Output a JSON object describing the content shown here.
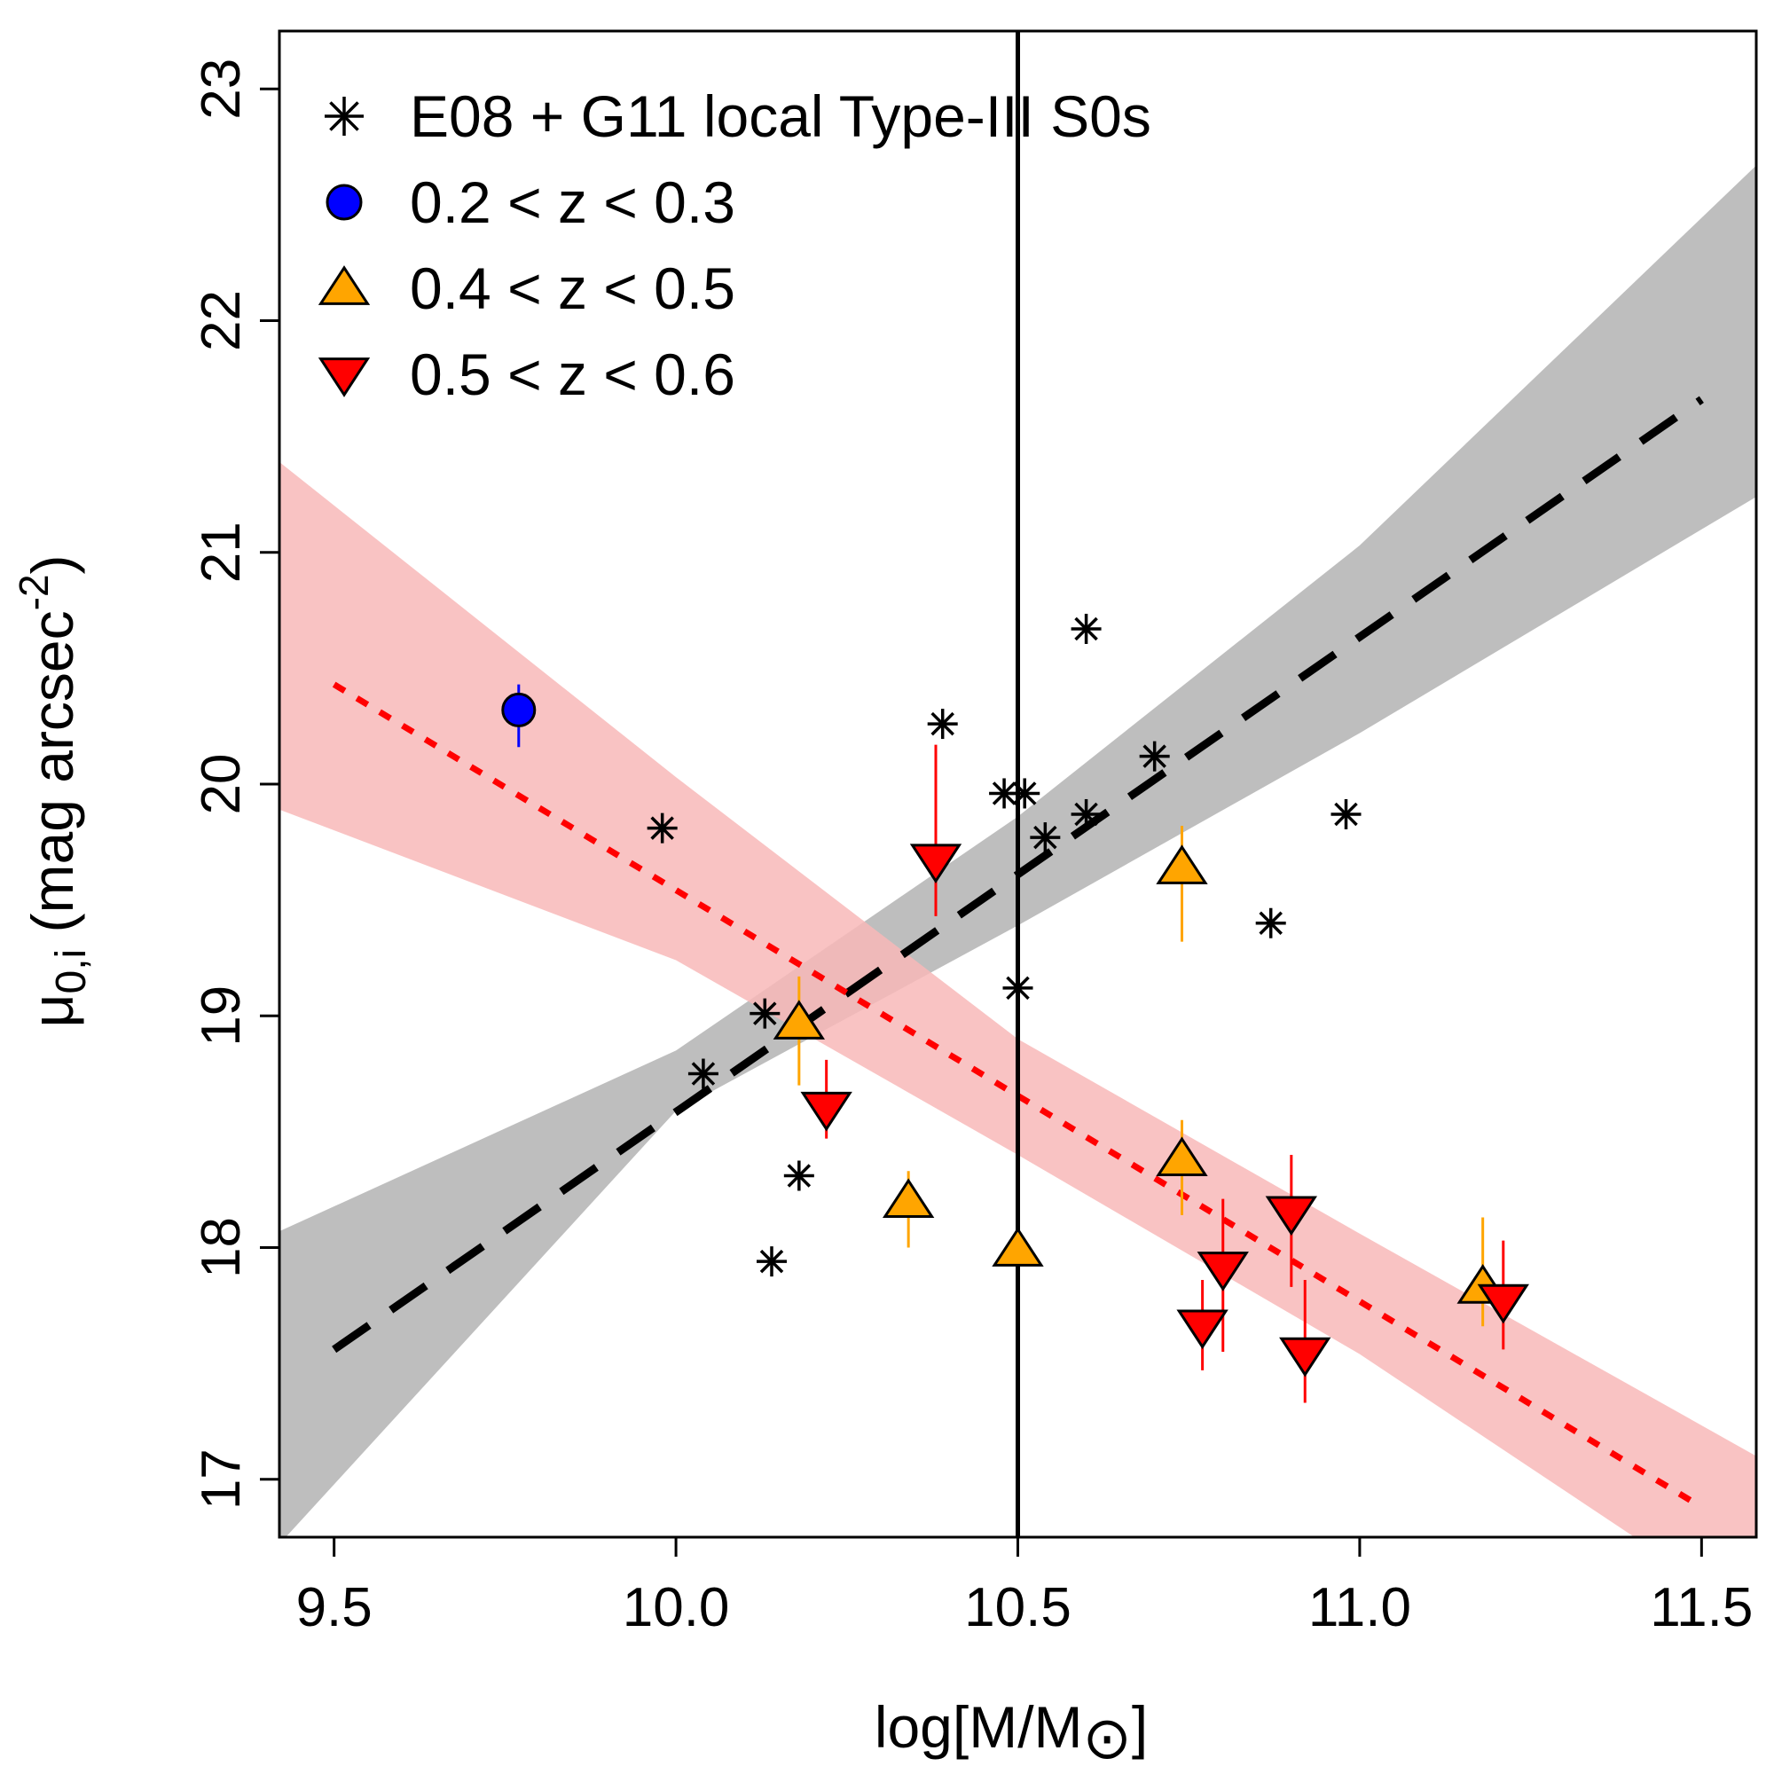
{
  "chart_data": {
    "type": "scatter",
    "title": "",
    "xlabel": "log[M/M⊙]",
    "xlabel_main": "log[M/M",
    "xlabel_sub": "⊙",
    "xlabel_close": "]",
    "ylabel": "μ0,i (mag arcsec-2)",
    "ylabel_mu": "μ",
    "ylabel_sub": "0,i",
    "ylabel_main": " (mag arcsec",
    "ylabel_sup": "-2",
    "ylabel_close": ")",
    "xlim": [
      9.42,
      11.58
    ],
    "ylim": [
      16.75,
      23.25
    ],
    "xticks": [
      9.5,
      10.0,
      10.5,
      11.0,
      11.5
    ],
    "xtick_labels": [
      "9.5",
      "10.0",
      "10.5",
      "11.0",
      "11.5"
    ],
    "yticks": [
      17,
      18,
      19,
      20,
      21,
      22,
      23
    ],
    "ytick_labels": [
      "17",
      "18",
      "19",
      "20",
      "21",
      "22",
      "23"
    ],
    "vertical_line_x": 10.5,
    "legend_position": "top-left",
    "legend": [
      {
        "label": "E08 + G11 local Type-III S0s",
        "marker": "asterisk",
        "color": "#000000"
      },
      {
        "label": "0.2 < z < 0.3",
        "marker": "circle",
        "color": "#0000ff"
      },
      {
        "label": "0.4 < z < 0.5",
        "marker": "triangle-up",
        "color": "#ffa500"
      },
      {
        "label": "0.5 < z < 0.6",
        "marker": "triangle-down",
        "color": "#ff0000"
      }
    ],
    "fits": [
      {
        "name": "local fit",
        "style": "dashed",
        "color": "#000000",
        "band_color": "#bebebe",
        "x": [
          9.5,
          11.5
        ],
        "y": [
          17.56,
          21.66
        ],
        "band_x": [
          9.42,
          10.0,
          10.5,
          11.0,
          11.58
        ],
        "band_lower": [
          16.72,
          18.59,
          19.39,
          20.22,
          21.24
        ],
        "band_upper": [
          18.07,
          18.85,
          19.86,
          21.03,
          22.67
        ]
      },
      {
        "name": "distant fit",
        "style": "dotted",
        "color": "#ff0000",
        "band_color": "#f8b8b8",
        "x": [
          9.5,
          11.5
        ],
        "y": [
          20.43,
          16.88
        ],
        "band_x": [
          9.42,
          10.0,
          10.5,
          11.0,
          11.58
        ],
        "band_lower": [
          19.89,
          19.24,
          18.4,
          17.54,
          16.4
        ],
        "band_upper": [
          21.39,
          20.03,
          18.9,
          18.06,
          17.1
        ]
      }
    ],
    "series": [
      {
        "name": "E08 + G11 local Type-III S0s",
        "marker": "asterisk",
        "color": "#000000",
        "points": [
          {
            "x": 10.6,
            "y": 20.67
          },
          {
            "x": 10.39,
            "y": 20.26
          },
          {
            "x": 10.48,
            "y": 19.96
          },
          {
            "x": 10.51,
            "y": 19.96
          },
          {
            "x": 10.7,
            "y": 20.12
          },
          {
            "x": 10.6,
            "y": 19.87
          },
          {
            "x": 10.54,
            "y": 19.77
          },
          {
            "x": 10.98,
            "y": 19.87
          },
          {
            "x": 9.98,
            "y": 19.81
          },
          {
            "x": 10.87,
            "y": 19.4
          },
          {
            "x": 10.5,
            "y": 19.12
          },
          {
            "x": 10.13,
            "y": 19.01
          },
          {
            "x": 10.04,
            "y": 18.75
          },
          {
            "x": 10.18,
            "y": 18.31
          },
          {
            "x": 10.14,
            "y": 17.94
          }
        ]
      },
      {
        "name": "0.2 < z < 0.3",
        "marker": "circle",
        "color": "#0000ff",
        "points": [
          {
            "x": 9.77,
            "y": 20.32,
            "err_lo": 20.16,
            "err_hi": 20.43
          }
        ]
      },
      {
        "name": "0.4 < z < 0.5",
        "marker": "triangle-up",
        "color": "#ffa500",
        "points": [
          {
            "x": 10.18,
            "y": 18.97,
            "err_lo": 18.7,
            "err_hi": 19.17
          },
          {
            "x": 10.34,
            "y": 18.2,
            "err_lo": 18.0,
            "err_hi": 18.33
          },
          {
            "x": 10.5,
            "y": 17.99,
            "err_lo": 17.99,
            "err_hi": 17.99
          },
          {
            "x": 10.74,
            "y": 19.64,
            "err_lo": 19.32,
            "err_hi": 19.82
          },
          {
            "x": 10.74,
            "y": 18.38,
            "err_lo": 18.14,
            "err_hi": 18.55
          },
          {
            "x": 11.18,
            "y": 17.83,
            "err_lo": 17.66,
            "err_hi": 18.13
          }
        ]
      },
      {
        "name": "0.5 < z < 0.6",
        "marker": "triangle-down",
        "color": "#ff0000",
        "points": [
          {
            "x": 10.38,
            "y": 19.67,
            "err_lo": 19.43,
            "err_hi": 20.17
          },
          {
            "x": 10.22,
            "y": 18.6,
            "err_lo": 18.47,
            "err_hi": 18.81
          },
          {
            "x": 10.77,
            "y": 17.66,
            "err_lo": 17.47,
            "err_hi": 17.86
          },
          {
            "x": 10.8,
            "y": 17.91,
            "err_lo": 17.55,
            "err_hi": 18.21
          },
          {
            "x": 10.9,
            "y": 18.15,
            "err_lo": 17.83,
            "err_hi": 18.4
          },
          {
            "x": 10.92,
            "y": 17.54,
            "err_lo": 17.33,
            "err_hi": 17.86
          },
          {
            "x": 11.21,
            "y": 17.77,
            "err_lo": 17.56,
            "err_hi": 18.03
          }
        ]
      }
    ]
  }
}
